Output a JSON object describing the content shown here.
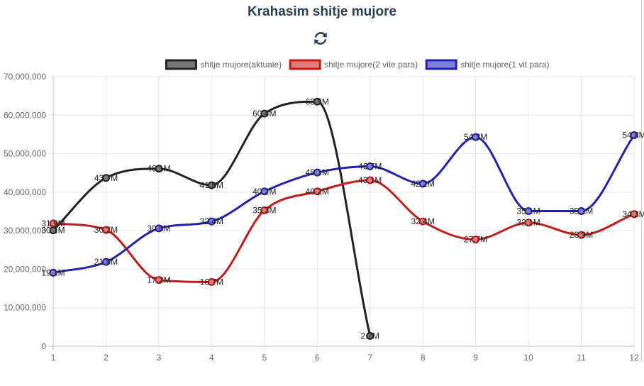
{
  "header": {
    "title": "Krahasim shitje mujore",
    "refresh_icon": "refresh-icon"
  },
  "chart_data": {
    "type": "line",
    "categories": [
      "1",
      "2",
      "3",
      "4",
      "5",
      "6",
      "7",
      "8",
      "9",
      "10",
      "11",
      "12"
    ],
    "ylim": [
      0,
      70000000
    ],
    "yticks": [
      "0",
      "10,000,000",
      "20,000,000",
      "30,000,000",
      "40,000,000",
      "50,000,000",
      "60,000,000",
      "70,000,000"
    ],
    "grid": true,
    "legend_position": "top",
    "series": [
      {
        "name": "shitje mujore(aktuale)",
        "color": "#222222",
        "fill": "#777777",
        "values": [
          30100000,
          43700000,
          46100000,
          41800000,
          60400000,
          63500000,
          2700000,
          null,
          null,
          null,
          null,
          null
        ],
        "labels": [
          "30.1M",
          "43.7M",
          "46.1M",
          "41.8M",
          "60.4M",
          "63.5M",
          "2.7M",
          "",
          "",
          "",
          "",
          ""
        ]
      },
      {
        "name": "shitje mujore(2 vite para)",
        "color": "#c21b1b",
        "fill": "#e07b7b",
        "values": [
          31900000,
          30200000,
          17200000,
          16700000,
          35300000,
          40200000,
          43100000,
          32400000,
          27700000,
          32100000,
          28900000,
          34300000
        ],
        "labels": [
          "31.9M",
          "30.2M",
          "17.2M",
          "16.7M",
          "35.3M",
          "40.2M",
          "43.1M",
          "32.4M",
          "27.7M",
          "32.1M",
          "28.9M",
          "34.3M"
        ]
      },
      {
        "name": "shitje mujore(1 vit para)",
        "color": "#2222aa",
        "fill": "#7f7fd6",
        "values": [
          19100000,
          21900000,
          30600000,
          32400000,
          40200000,
          45100000,
          46700000,
          42200000,
          54300000,
          35100000,
          35100000,
          54800000
        ],
        "labels": [
          "19.1M",
          "21.9M",
          "30.6M",
          "32.4M",
          "40.2M",
          "45.1M",
          "46.7M",
          "42.2M",
          "54.3M",
          "35.1M",
          "35.1M",
          "54.8M"
        ]
      }
    ]
  }
}
